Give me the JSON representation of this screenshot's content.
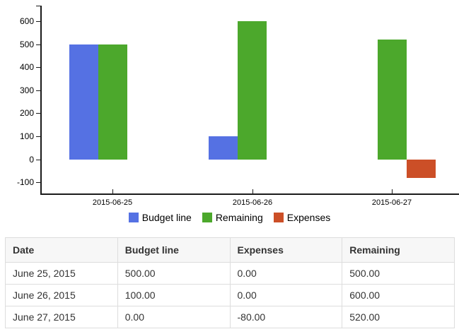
{
  "chart_data": {
    "type": "bar",
    "title": "",
    "categories": [
      "2015-06-25",
      "2015-06-26",
      "2015-06-27"
    ],
    "series": [
      {
        "name": "Budget line",
        "color": "#5571e3",
        "values": [
          500,
          100,
          0
        ]
      },
      {
        "name": "Remaining",
        "color": "#4ca82c",
        "values": [
          500,
          600,
          520
        ]
      },
      {
        "name": "Expenses",
        "color": "#cc4f27",
        "values": [
          0,
          0,
          -80
        ]
      }
    ],
    "y_ticks": [
      600,
      500,
      400,
      300,
      200,
      100,
      0,
      -100
    ],
    "ylim": [
      -150,
      665
    ],
    "xlabel": "",
    "ylabel": "",
    "grid": false,
    "legend_position": "bottom"
  },
  "table": {
    "columns": [
      "Date",
      "Budget line",
      "Expenses",
      "Remaining"
    ],
    "rows": [
      [
        "June 25, 2015",
        "500.00",
        "0.00",
        "500.00"
      ],
      [
        "June 26, 2015",
        "100.00",
        "0.00",
        "600.00"
      ],
      [
        "June 27, 2015",
        "0.00",
        "-80.00",
        "520.00"
      ]
    ]
  }
}
